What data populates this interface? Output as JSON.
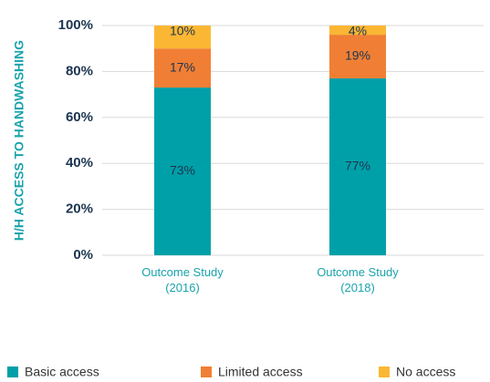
{
  "chart_data": {
    "type": "stacked_bar",
    "y_label": "H/H ACCESS TO HANDWASHING",
    "categories": [
      "Outcome Study (2016)",
      "Outcome Study (2018)"
    ],
    "series": [
      {
        "name": "Basic access",
        "color": "#00a0a8",
        "values": [
          73,
          77
        ],
        "value_labels": [
          "73%",
          "77%"
        ]
      },
      {
        "name": "Limited access",
        "color": "#f07f35",
        "values": [
          17,
          19
        ],
        "value_labels": [
          "17%",
          "19%"
        ]
      },
      {
        "name": "No access",
        "color": "#fbb733",
        "values": [
          10,
          4
        ],
        "value_labels": [
          "10%",
          "4%"
        ]
      }
    ],
    "ylim": [
      0,
      100
    ],
    "yticks": [
      {
        "value": 0,
        "label": "0%"
      },
      {
        "value": 20,
        "label": "20%"
      },
      {
        "value": 40,
        "label": "40%"
      },
      {
        "value": 60,
        "label": "60%"
      },
      {
        "value": 80,
        "label": "80%"
      },
      {
        "value": 100,
        "label": "100%"
      }
    ],
    "grid": true,
    "legend": "bottom"
  }
}
